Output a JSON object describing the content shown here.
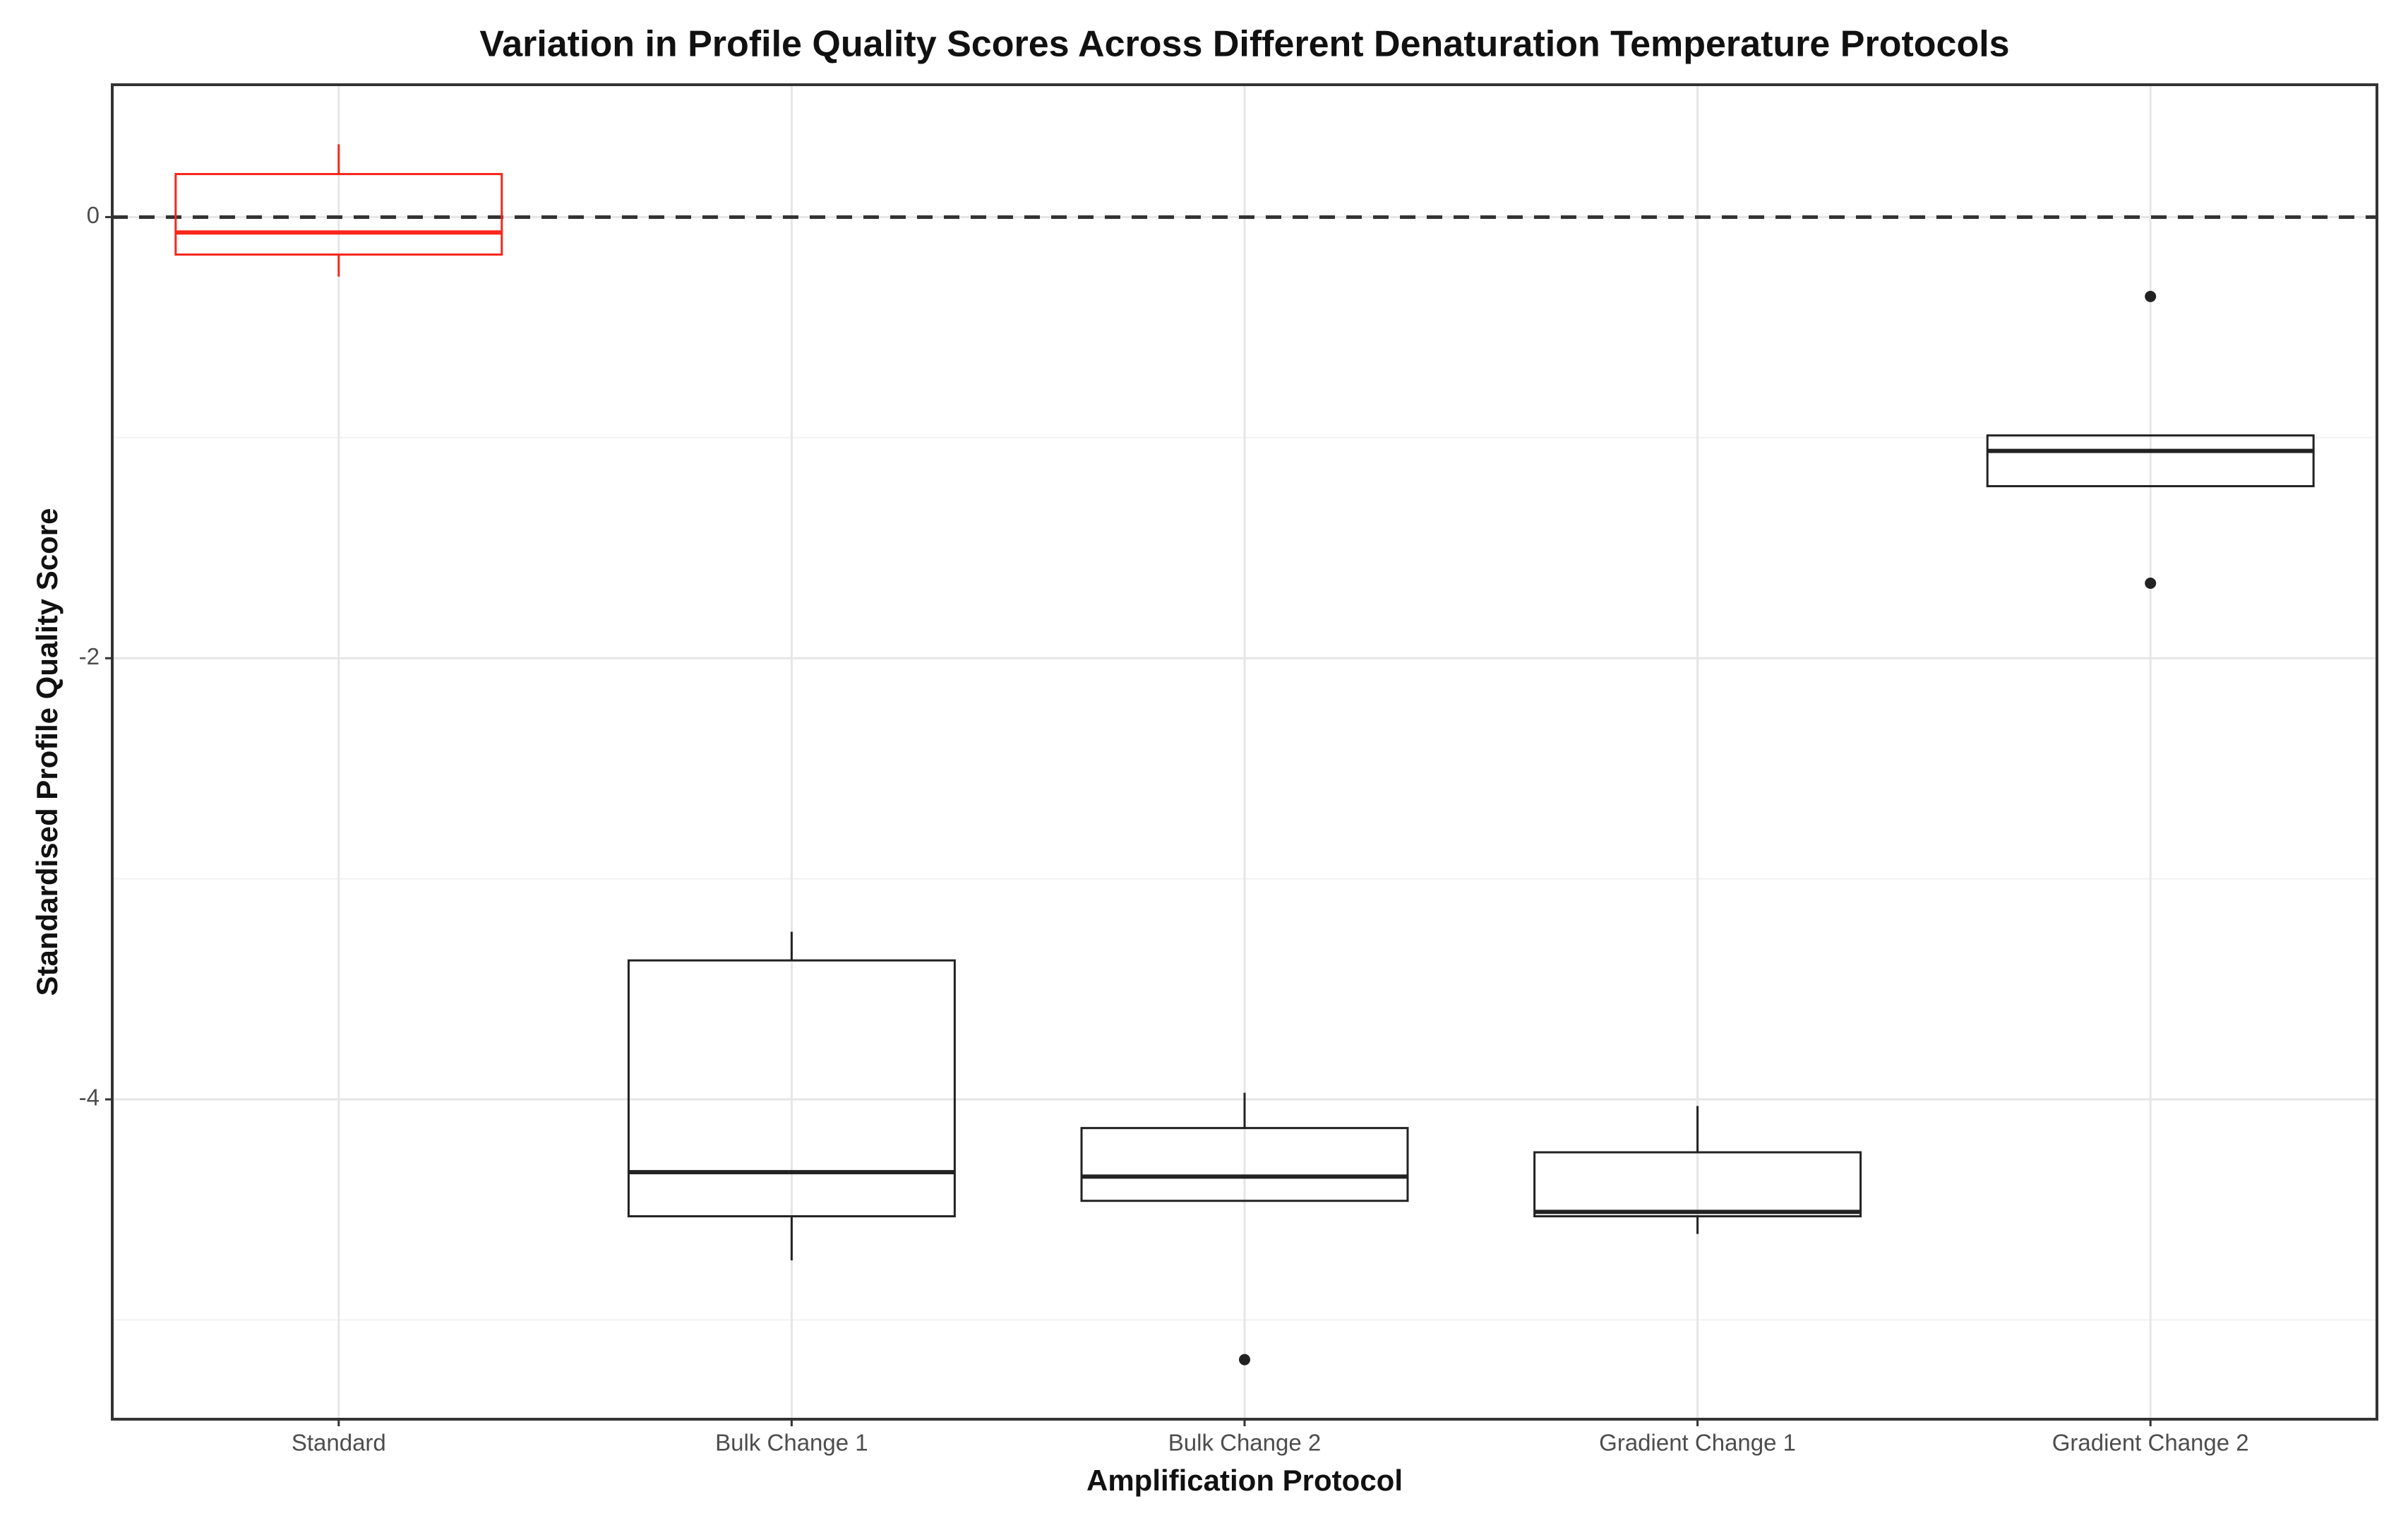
{
  "chart_data": {
    "type": "box",
    "title": "Variation in Profile Quality Scores Across Different Denaturation Temperature Protocols",
    "x_label": "Amplification Protocol",
    "y_label": "Standardised Profile Quality Score",
    "categories": [
      "Standard",
      "Bulk Change 1",
      "Bulk Change 2",
      "Gradient Change 1",
      "Gradient Change 2"
    ],
    "colors": [
      "#f8261c",
      "#222222",
      "#222222",
      "#222222",
      "#222222"
    ],
    "min": [
      -0.27,
      -4.73,
      -4.46,
      -4.61,
      -1.22
    ],
    "q1": [
      -0.17,
      -4.53,
      -4.46,
      -4.53,
      -1.22
    ],
    "median": [
      -0.07,
      -4.33,
      -4.35,
      -4.51,
      -1.06
    ],
    "q3": [
      0.195,
      -3.37,
      -4.13,
      -4.24,
      -0.99
    ],
    "max": [
      0.33,
      -3.24,
      -3.97,
      -4.03,
      -0.99
    ],
    "outliers": [
      [],
      [],
      [
        -5.18
      ],
      [],
      [
        -0.36,
        -1.66
      ]
    ],
    "hline": 0,
    "ylim": [
      -5.45,
      0.6
    ],
    "yticks": [
      -4,
      -2,
      0
    ],
    "minor_yticks": [
      -5,
      -3,
      -1
    ],
    "grid": true
  }
}
